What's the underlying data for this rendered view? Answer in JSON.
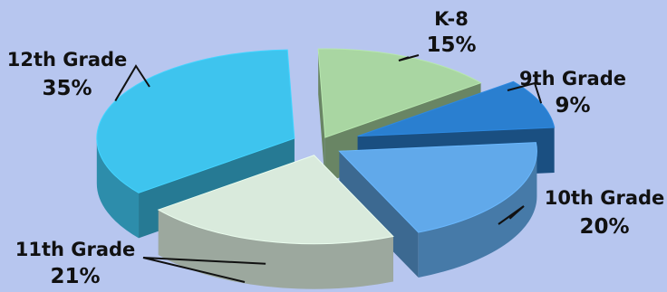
{
  "chart_data": {
    "type": "pie",
    "style": "3d-exploded",
    "title": "",
    "legend": "none",
    "slices": [
      {
        "label": "K-8",
        "value": 15,
        "display": "15%",
        "color": "#a9d6a2"
      },
      {
        "label": "9th Grade",
        "value": 9,
        "display": "9%",
        "color": "#2a7fd0"
      },
      {
        "label": "10th Grade",
        "value": 20,
        "display": "20%",
        "color": "#61a9ea"
      },
      {
        "label": "11th Grade",
        "value": 21,
        "display": "21%",
        "color": "#d9eadc"
      },
      {
        "label": "12th Grade",
        "value": 35,
        "display": "35%",
        "color": "#3ec4ee"
      }
    ]
  }
}
